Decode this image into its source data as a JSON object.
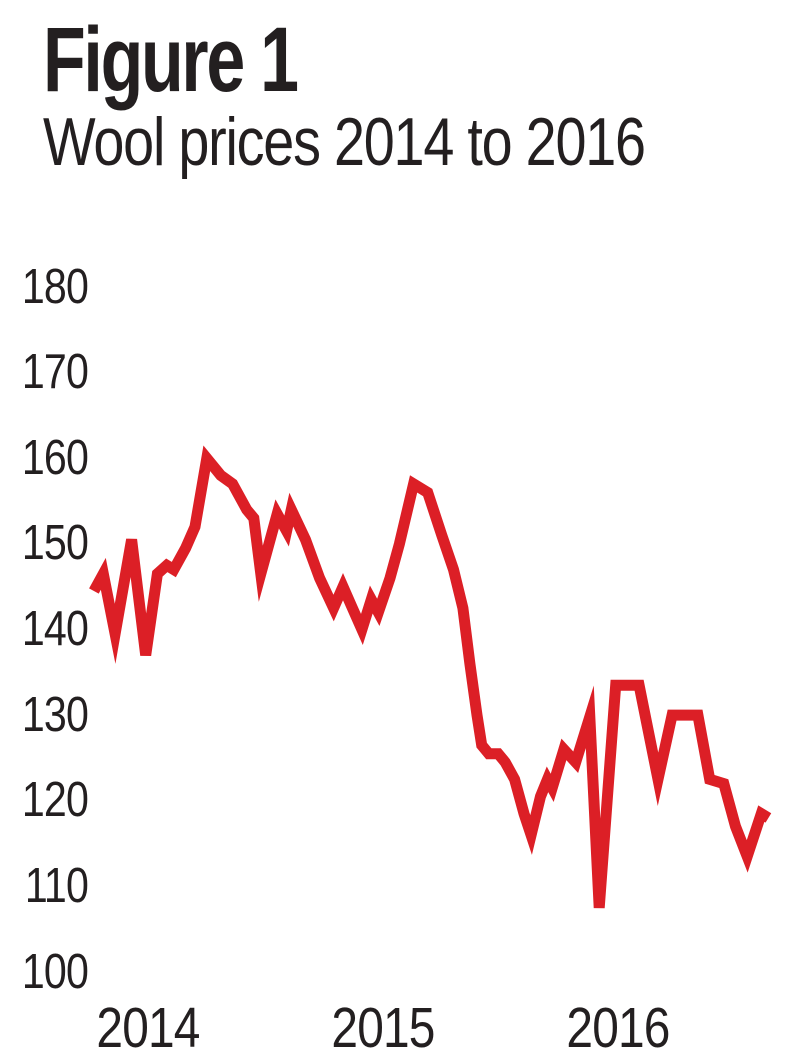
{
  "figure": {
    "label": "Figure 1",
    "title": "Wool prices 2014 to 2016"
  },
  "colors": {
    "line": "#dc1f26",
    "text": "#231f20",
    "background": "#ffffff"
  },
  "chart_data": {
    "type": "line",
    "title": "Wool prices 2014 to 2016",
    "xlabel": "",
    "ylabel": "",
    "grid": false,
    "axis_lines": false,
    "legend": false,
    "ylim": [
      100,
      183
    ],
    "xlim": [
      2013.75,
      2016.68
    ],
    "y_ticks": [
      180,
      170,
      160,
      150,
      140,
      130,
      120,
      110,
      100
    ],
    "x_ticks": [
      {
        "t": 2014,
        "label": "2014"
      },
      {
        "t": 2015,
        "label": "2015"
      },
      {
        "t": 2016,
        "label": "2016"
      }
    ],
    "series": [
      {
        "name": "Wool price",
        "color": "#dc1f26",
        "points": [
          [
            2013.77,
            144.5
          ],
          [
            2013.81,
            146.5
          ],
          [
            2013.86,
            139.5
          ],
          [
            2013.93,
            150.5
          ],
          [
            2013.99,
            137
          ],
          [
            2014.04,
            146.5
          ],
          [
            2014.08,
            147.5
          ],
          [
            2014.11,
            147
          ],
          [
            2014.16,
            149.5
          ],
          [
            2014.2,
            152
          ],
          [
            2014.25,
            160
          ],
          [
            2014.31,
            158
          ],
          [
            2014.36,
            157
          ],
          [
            2014.42,
            154
          ],
          [
            2014.45,
            153
          ],
          [
            2014.48,
            146.5
          ],
          [
            2014.55,
            153.5
          ],
          [
            2014.59,
            151.5
          ],
          [
            2014.61,
            154
          ],
          [
            2014.67,
            150.5
          ],
          [
            2014.73,
            146
          ],
          [
            2014.79,
            142.5
          ],
          [
            2014.83,
            145
          ],
          [
            2014.87,
            142.5
          ],
          [
            2014.91,
            140
          ],
          [
            2014.95,
            143.5
          ],
          [
            2014.98,
            142
          ],
          [
            2015.03,
            146
          ],
          [
            2015.07,
            150
          ],
          [
            2015.13,
            157
          ],
          [
            2015.19,
            156
          ],
          [
            2015.25,
            151
          ],
          [
            2015.3,
            147
          ],
          [
            2015.34,
            142.5
          ],
          [
            2015.37,
            136
          ],
          [
            2015.4,
            130
          ],
          [
            2015.42,
            126.5
          ],
          [
            2015.45,
            125.5
          ],
          [
            2015.49,
            125.5
          ],
          [
            2015.52,
            124.5
          ],
          [
            2015.56,
            122.5
          ],
          [
            2015.6,
            118.5
          ],
          [
            2015.63,
            116
          ],
          [
            2015.67,
            120.5
          ],
          [
            2015.7,
            122.5
          ],
          [
            2015.72,
            121.5
          ],
          [
            2015.77,
            126
          ],
          [
            2015.82,
            124.5
          ],
          [
            2015.88,
            129.8
          ],
          [
            2015.92,
            107.5
          ],
          [
            2015.99,
            133.5
          ],
          [
            2016.09,
            133.5
          ],
          [
            2016.17,
            122.5
          ],
          [
            2016.23,
            130
          ],
          [
            2016.34,
            130
          ],
          [
            2016.39,
            122.5
          ],
          [
            2016.45,
            122
          ],
          [
            2016.5,
            117
          ],
          [
            2016.55,
            113.5
          ],
          [
            2016.61,
            118.5
          ],
          [
            2016.64,
            118
          ]
        ]
      }
    ]
  }
}
